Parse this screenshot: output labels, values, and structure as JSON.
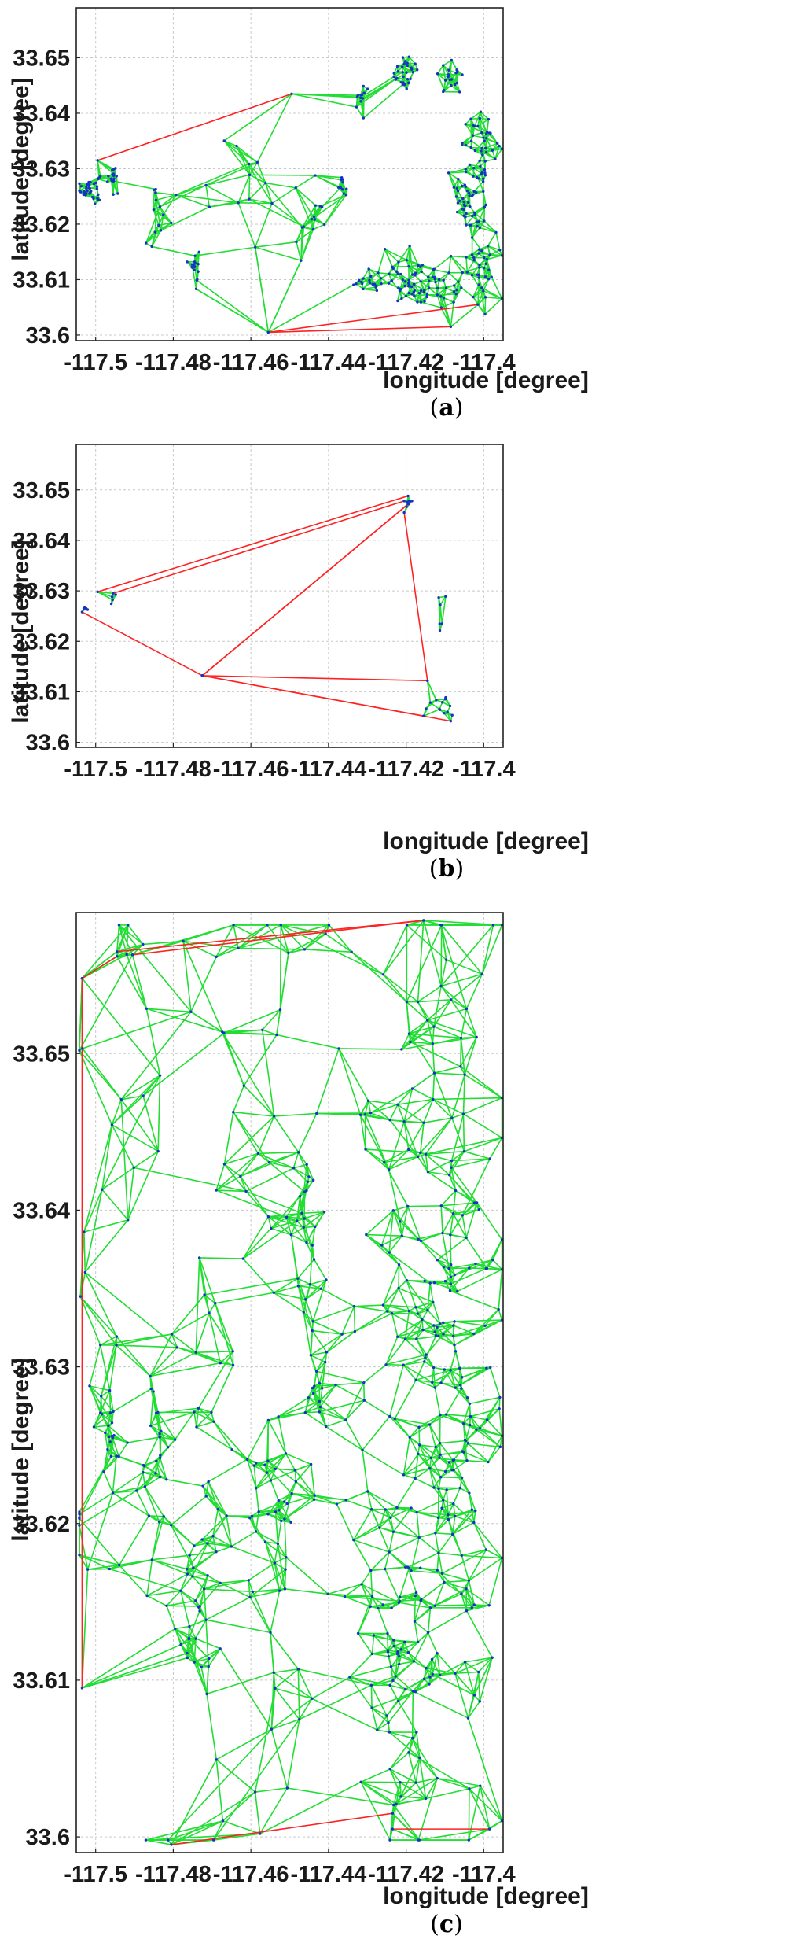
{
  "chart_data": [
    {
      "type": "scatter",
      "panel_label": "a",
      "xlabel": "longitude [degree]",
      "ylabel": "latitude [degree]",
      "xlim": [
        -117.505,
        -117.395
      ],
      "ylim": [
        33.599,
        33.659
      ],
      "xticks": [
        -117.5,
        -117.48,
        -117.46,
        -117.44,
        -117.42,
        -117.4
      ],
      "xtick_labels": [
        "-117.5",
        "-117.48",
        "-117.46",
        "-117.44",
        "-117.42",
        "-117.4"
      ],
      "yticks": [
        33.6,
        33.61,
        33.62,
        33.63,
        33.64,
        33.65
      ],
      "ytick_labels": [
        "33.6",
        "33.61",
        "33.62",
        "33.63",
        "33.64",
        "33.65"
      ],
      "grid": true,
      "colors": {
        "edge": "#22dd33",
        "boundary": "#ff2222",
        "node": "#1830c8"
      },
      "clusters": [
        {
          "cx": -117.5015,
          "cy": 33.6265,
          "rx": 0.0025,
          "ry": 0.0025,
          "n": 40
        },
        {
          "cx": -117.4955,
          "cy": 33.6285,
          "rx": 0.0015,
          "ry": 0.002,
          "n": 16
        },
        {
          "cx": -117.4845,
          "cy": 33.6255,
          "rx": 0.0006,
          "ry": 0.001,
          "n": 5
        },
        {
          "cx": -117.4745,
          "cy": 33.6125,
          "rx": 0.001,
          "ry": 0.0035,
          "n": 18
        },
        {
          "cx": -117.4365,
          "cy": 33.6275,
          "rx": 0.0008,
          "ry": 0.0025,
          "n": 10
        },
        {
          "cx": -117.4205,
          "cy": 33.6475,
          "rx": 0.003,
          "ry": 0.003,
          "n": 30
        },
        {
          "cx": -117.4315,
          "cy": 33.6425,
          "rx": 0.002,
          "ry": 0.002,
          "n": 12
        },
        {
          "cx": -117.4085,
          "cy": 33.6465,
          "rx": 0.003,
          "ry": 0.0025,
          "n": 20
        },
        {
          "cx": -117.4005,
          "cy": 33.6345,
          "rx": 0.0045,
          "ry": 0.0045,
          "n": 40
        },
        {
          "cx": -117.4035,
          "cy": 33.6255,
          "rx": 0.0055,
          "ry": 0.0045,
          "n": 45
        },
        {
          "cx": -117.4165,
          "cy": 33.6095,
          "rx": 0.0085,
          "ry": 0.004,
          "n": 80
        },
        {
          "cx": -117.4005,
          "cy": 33.6145,
          "rx": 0.0045,
          "ry": 0.008,
          "n": 50
        },
        {
          "cx": -117.4305,
          "cy": 33.6095,
          "rx": 0.0035,
          "ry": 0.002,
          "n": 18
        },
        {
          "cx": -117.4445,
          "cy": 33.6175,
          "rx": 0.006,
          "ry": 0.008,
          "n": 14
        },
        {
          "cx": -117.4625,
          "cy": 33.6265,
          "rx": 0.01,
          "ry": 0.01,
          "n": 12
        },
        {
          "cx": -117.4835,
          "cy": 33.6195,
          "rx": 0.006,
          "ry": 0.006,
          "n": 10
        }
      ],
      "boundary_edges": [
        [
          [
            -117.4995,
            33.6315
          ],
          [
            -117.4495,
            33.6435
          ]
        ],
        [
          [
            -117.4555,
            33.6005
          ],
          [
            -117.4015,
            33.6055
          ]
        ],
        [
          [
            -117.4555,
            33.6005
          ],
          [
            -117.4085,
            33.6015
          ]
        ]
      ]
    },
    {
      "type": "scatter",
      "panel_label": "b",
      "xlabel": "longitude [degree]",
      "ylabel": "latitude [degree]",
      "xlim": [
        -117.505,
        -117.395
      ],
      "ylim": [
        33.599,
        33.659
      ],
      "xticks": [
        -117.5,
        -117.48,
        -117.46,
        -117.44,
        -117.42,
        -117.4
      ],
      "xtick_labels": [
        "-117.5",
        "-117.48",
        "-117.46",
        "-117.44",
        "-117.42",
        "-117.4"
      ],
      "yticks": [
        33.6,
        33.61,
        33.62,
        33.63,
        33.64,
        33.65
      ],
      "ytick_labels": [
        "33.6",
        "33.61",
        "33.62",
        "33.63",
        "33.64",
        "33.65"
      ],
      "grid": true,
      "colors": {
        "edge": "#22dd33",
        "boundary": "#ff2222",
        "node": "#1830c8"
      },
      "clusters": [
        {
          "cx": -117.5025,
          "cy": 33.6265,
          "rx": 0.0008,
          "ry": 0.0005,
          "n": 4
        },
        {
          "cx": -117.4965,
          "cy": 33.6285,
          "rx": 0.0012,
          "ry": 0.0012,
          "n": 4
        },
        {
          "cx": -117.4195,
          "cy": 33.6475,
          "rx": 0.0008,
          "ry": 0.0012,
          "n": 5
        },
        {
          "cx": -117.4105,
          "cy": 33.6245,
          "rx": 0.002,
          "ry": 0.005,
          "n": 6
        },
        {
          "cx": -117.4105,
          "cy": 33.6075,
          "rx": 0.004,
          "ry": 0.0025,
          "n": 12
        }
      ],
      "boundary_edges": [
        [
          [
            -117.5035,
            33.6258
          ],
          [
            -117.4725,
            33.6132
          ]
        ],
        [
          [
            -117.4995,
            33.6298
          ],
          [
            -117.4195,
            33.6488
          ]
        ],
        [
          [
            -117.4955,
            33.6295
          ],
          [
            -117.4205,
            33.6478
          ]
        ],
        [
          [
            -117.4725,
            33.6132
          ],
          [
            -117.4185,
            33.6478
          ]
        ],
        [
          [
            -117.4725,
            33.6132
          ],
          [
            -117.4195,
            33.6472
          ]
        ],
        [
          [
            -117.4725,
            33.6132
          ],
          [
            -117.4145,
            33.6122
          ]
        ],
        [
          [
            -117.4725,
            33.6132
          ],
          [
            -117.4085,
            33.6042
          ]
        ],
        [
          [
            -117.4725,
            33.6132
          ],
          [
            -117.4155,
            33.6052
          ]
        ],
        [
          [
            -117.4205,
            33.6455
          ],
          [
            -117.4145,
            33.6122
          ]
        ]
      ]
    },
    {
      "type": "scatter",
      "panel_label": "c",
      "xlabel": "longitude [degree]",
      "ylabel": "latitude [degree]",
      "xlim": [
        -117.505,
        -117.395
      ],
      "ylim": [
        33.599,
        33.659
      ],
      "xticks": [
        -117.5,
        -117.48,
        -117.46,
        -117.44,
        -117.42,
        -117.4
      ],
      "xtick_labels": [
        "-117.5",
        "-117.48",
        "-117.46",
        "-117.44",
        "-117.42",
        "-117.4"
      ],
      "yticks": [
        33.6,
        33.61,
        33.62,
        33.63,
        33.64,
        33.65
      ],
      "ytick_labels": [
        "33.6",
        "33.61",
        "33.62",
        "33.63",
        "33.64",
        "33.65"
      ],
      "grid": true,
      "colors": {
        "edge": "#22dd33",
        "boundary": "#ff2222",
        "node": "#1830c8"
      },
      "clusters": [
        {
          "cx": -117.4505,
          "cy": 33.6295,
          "rx": 0.054,
          "ry": 0.0285,
          "n": 240
        },
        {
          "cx": -117.4965,
          "cy": 33.6265,
          "rx": 0.004,
          "ry": 0.005,
          "n": 25
        },
        {
          "cx": -117.4845,
          "cy": 33.6245,
          "rx": 0.004,
          "ry": 0.005,
          "n": 20
        },
        {
          "cx": -117.4735,
          "cy": 33.6145,
          "rx": 0.005,
          "ry": 0.006,
          "n": 25
        },
        {
          "cx": -117.4535,
          "cy": 33.6215,
          "rx": 0.004,
          "ry": 0.005,
          "n": 20
        },
        {
          "cx": -117.4465,
          "cy": 33.6385,
          "rx": 0.003,
          "ry": 0.004,
          "n": 12
        },
        {
          "cx": -117.4105,
          "cy": 33.6285,
          "rx": 0.013,
          "ry": 0.0245,
          "n": 200
        },
        {
          "cx": -117.4235,
          "cy": 33.6125,
          "rx": 0.01,
          "ry": 0.008,
          "n": 60
        }
      ],
      "boundary_edges": [
        [
          [
            -117.5035,
            33.6548
          ],
          [
            -117.4945,
            33.6562
          ]
        ],
        [
          [
            -117.4945,
            33.6565
          ],
          [
            -117.4155,
            33.6585
          ]
        ],
        [
          [
            -117.4905,
            33.6563
          ],
          [
            -117.4155,
            33.6585
          ]
        ],
        [
          [
            -117.5035,
            33.6548
          ],
          [
            -117.5035,
            33.6095
          ]
        ],
        [
          [
            -117.4805,
            33.5995
          ],
          [
            -117.4235,
            33.6015
          ]
        ],
        [
          [
            -117.4235,
            33.6005
          ],
          [
            -117.3985,
            33.6005
          ]
        ]
      ]
    }
  ],
  "captions": [
    {
      "open": "(",
      "letter": "a",
      "close": ")"
    },
    {
      "open": "(",
      "letter": "b",
      "close": ")"
    },
    {
      "open": "(",
      "letter": "c",
      "close": ")"
    }
  ]
}
